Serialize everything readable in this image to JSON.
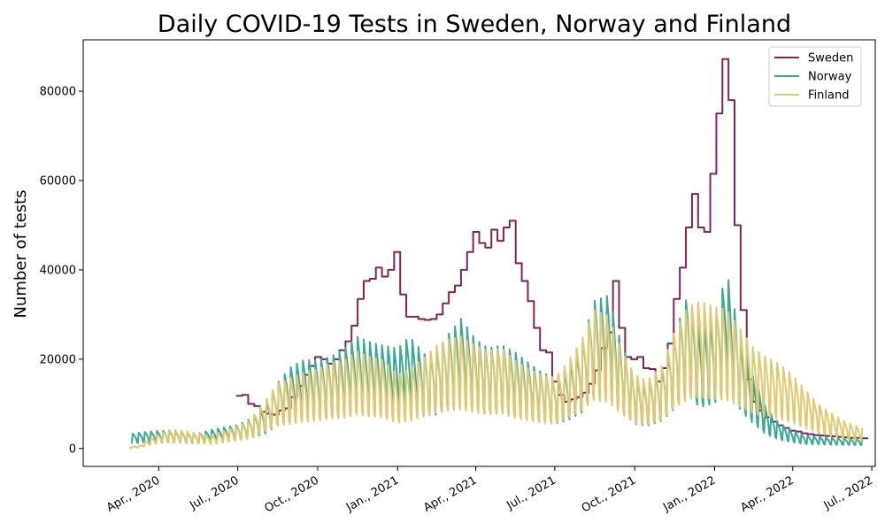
{
  "chart_data": {
    "type": "line",
    "title": "Daily COVID-19 Tests in Sweden, Norway and Finland",
    "xlabel": "",
    "ylabel": "Number of tests",
    "ylim": [
      -4000,
      91500
    ],
    "yticks": [
      0,
      20000,
      40000,
      60000,
      80000
    ],
    "xlim": [
      "2020-01-05",
      "2022-07-05"
    ],
    "xticks": [
      {
        "date": "2020-04-01",
        "label": "Apr., 2020"
      },
      {
        "date": "2020-07-01",
        "label": "Jul., 2020"
      },
      {
        "date": "2020-10-01",
        "label": "Oct., 2020"
      },
      {
        "date": "2021-01-01",
        "label": "Jan., 2021"
      },
      {
        "date": "2021-04-01",
        "label": "Apr., 2021"
      },
      {
        "date": "2021-07-01",
        "label": "Jul., 2021"
      },
      {
        "date": "2021-10-01",
        "label": "Oct., 2021"
      },
      {
        "date": "2022-01-01",
        "label": "Jan., 2022"
      },
      {
        "date": "2022-04-01",
        "label": "Apr., 2022"
      },
      {
        "date": "2022-07-01",
        "label": "Jul., 2022"
      }
    ],
    "grid": false,
    "legend_position": "top-right",
    "series": [
      {
        "name": "Sweden",
        "color": "#832357",
        "style": "weekly-steps",
        "points": [
          [
            "2020-06-29",
            11800
          ],
          [
            "2020-07-06",
            12000
          ],
          [
            "2020-07-13",
            10000
          ],
          [
            "2020-07-20",
            9500
          ],
          [
            "2020-07-27",
            8200
          ],
          [
            "2020-08-03",
            7800
          ],
          [
            "2020-08-10",
            7600
          ],
          [
            "2020-08-17",
            8500
          ],
          [
            "2020-08-24",
            9000
          ],
          [
            "2020-08-31",
            11500
          ],
          [
            "2020-09-07",
            14000
          ],
          [
            "2020-09-14",
            16500
          ],
          [
            "2020-09-21",
            18500
          ],
          [
            "2020-09-28",
            20500
          ],
          [
            "2020-10-05",
            20000
          ],
          [
            "2020-10-12",
            19000
          ],
          [
            "2020-10-19",
            20000
          ],
          [
            "2020-10-26",
            22000
          ],
          [
            "2020-11-02",
            24000
          ],
          [
            "2020-11-09",
            27500
          ],
          [
            "2020-11-16",
            33500
          ],
          [
            "2020-11-23",
            37500
          ],
          [
            "2020-11-30",
            38000
          ],
          [
            "2020-12-07",
            40500
          ],
          [
            "2020-12-14",
            38500
          ],
          [
            "2020-12-21",
            40000
          ],
          [
            "2020-12-28",
            44000
          ],
          [
            "2021-01-04",
            34500
          ],
          [
            "2021-01-11",
            29500
          ],
          [
            "2021-01-18",
            29500
          ],
          [
            "2021-01-25",
            29000
          ],
          [
            "2021-02-01",
            28800
          ],
          [
            "2021-02-08",
            29000
          ],
          [
            "2021-02-15",
            30000
          ],
          [
            "2021-02-22",
            32500
          ],
          [
            "2021-03-01",
            35000
          ],
          [
            "2021-03-08",
            36500
          ],
          [
            "2021-03-15",
            40000
          ],
          [
            "2021-03-22",
            44000
          ],
          [
            "2021-03-29",
            48500
          ],
          [
            "2021-04-05",
            46000
          ],
          [
            "2021-04-12",
            45000
          ],
          [
            "2021-04-19",
            49000
          ],
          [
            "2021-04-26",
            46500
          ],
          [
            "2021-05-03",
            49500
          ],
          [
            "2021-05-10",
            51000
          ],
          [
            "2021-05-17",
            41500
          ],
          [
            "2021-05-24",
            37500
          ],
          [
            "2021-05-31",
            33000
          ],
          [
            "2021-06-07",
            27000
          ],
          [
            "2021-06-14",
            22000
          ],
          [
            "2021-06-21",
            21500
          ],
          [
            "2021-06-28",
            15000
          ],
          [
            "2021-07-05",
            12000
          ],
          [
            "2021-07-12",
            10500
          ],
          [
            "2021-07-19",
            11000
          ],
          [
            "2021-07-26",
            11500
          ],
          [
            "2021-08-02",
            12500
          ],
          [
            "2021-08-09",
            14500
          ],
          [
            "2021-08-16",
            17500
          ],
          [
            "2021-08-23",
            22500
          ],
          [
            "2021-08-30",
            26000
          ],
          [
            "2021-09-06",
            37500
          ],
          [
            "2021-09-13",
            27000
          ],
          [
            "2021-09-20",
            20500
          ],
          [
            "2021-09-27",
            20000
          ],
          [
            "2021-10-04",
            20500
          ],
          [
            "2021-10-11",
            18000
          ],
          [
            "2021-10-18",
            17800
          ],
          [
            "2021-10-25",
            15000
          ],
          [
            "2021-11-01",
            18000
          ],
          [
            "2021-11-08",
            23500
          ],
          [
            "2021-11-15",
            33500
          ],
          [
            "2021-11-22",
            40500
          ],
          [
            "2021-11-29",
            49500
          ],
          [
            "2021-12-06",
            57000
          ],
          [
            "2021-12-13",
            49500
          ],
          [
            "2021-12-20",
            48500
          ],
          [
            "2021-12-27",
            61500
          ],
          [
            "2022-01-03",
            75000
          ],
          [
            "2022-01-10",
            87200
          ],
          [
            "2022-01-17",
            78000
          ],
          [
            "2022-01-24",
            50000
          ],
          [
            "2022-01-31",
            31000
          ],
          [
            "2022-02-07",
            15500
          ],
          [
            "2022-02-14",
            10500
          ],
          [
            "2022-02-21",
            8500
          ],
          [
            "2022-02-28",
            7000
          ],
          [
            "2022-03-07",
            6000
          ],
          [
            "2022-03-14",
            5200
          ],
          [
            "2022-03-21",
            4600
          ],
          [
            "2022-03-28",
            4000
          ],
          [
            "2022-04-04",
            3800
          ],
          [
            "2022-04-11",
            3400
          ],
          [
            "2022-04-18",
            3200
          ],
          [
            "2022-04-25",
            3000
          ],
          [
            "2022-05-02",
            2900
          ],
          [
            "2022-05-09",
            2800
          ],
          [
            "2022-05-16",
            2700
          ],
          [
            "2022-05-23",
            2600
          ],
          [
            "2022-05-30",
            2500
          ],
          [
            "2022-06-06",
            2400
          ],
          [
            "2022-06-13",
            2400
          ],
          [
            "2022-06-20",
            2300
          ]
        ]
      },
      {
        "name": "Norway",
        "color": "#3aa996",
        "style": "daily-weekly-oscillation",
        "points": [
          [
            "2020-03-01",
            2500
          ],
          [
            "2020-03-15",
            2800
          ],
          [
            "2020-04-01",
            3000
          ],
          [
            "2020-04-15",
            3000
          ],
          [
            "2020-05-01",
            2800
          ],
          [
            "2020-05-15",
            2500
          ],
          [
            "2020-06-01",
            3200
          ],
          [
            "2020-06-15",
            3600
          ],
          [
            "2020-07-01",
            4000
          ],
          [
            "2020-07-15",
            5000
          ],
          [
            "2020-08-01",
            7000
          ],
          [
            "2020-08-15",
            11000
          ],
          [
            "2020-09-01",
            14000
          ],
          [
            "2020-09-15",
            15000
          ],
          [
            "2020-10-01",
            15000
          ],
          [
            "2020-10-15",
            15500
          ],
          [
            "2020-11-01",
            17000
          ],
          [
            "2020-11-15",
            19000
          ],
          [
            "2020-12-01",
            18000
          ],
          [
            "2020-12-15",
            17500
          ],
          [
            "2021-01-01",
            17000
          ],
          [
            "2021-01-15",
            19000
          ],
          [
            "2021-02-01",
            16000
          ],
          [
            "2021-02-15",
            16500
          ],
          [
            "2021-03-01",
            19500
          ],
          [
            "2021-03-15",
            22000
          ],
          [
            "2021-04-01",
            18500
          ],
          [
            "2021-04-15",
            17000
          ],
          [
            "2021-05-01",
            17500
          ],
          [
            "2021-05-15",
            16500
          ],
          [
            "2021-06-01",
            14500
          ],
          [
            "2021-06-15",
            13000
          ],
          [
            "2021-07-01",
            12000
          ],
          [
            "2021-07-15",
            13500
          ],
          [
            "2021-08-01",
            17500
          ],
          [
            "2021-08-15",
            25000
          ],
          [
            "2021-09-01",
            26000
          ],
          [
            "2021-09-15",
            18000
          ],
          [
            "2021-10-01",
            12000
          ],
          [
            "2021-10-15",
            11000
          ],
          [
            "2021-11-01",
            13500
          ],
          [
            "2021-11-15",
            19000
          ],
          [
            "2021-12-01",
            26000
          ],
          [
            "2021-12-15",
            20000
          ],
          [
            "2022-01-01",
            22000
          ],
          [
            "2022-01-15",
            30000
          ],
          [
            "2022-02-01",
            18000
          ],
          [
            "2022-02-15",
            12000
          ],
          [
            "2022-03-01",
            7000
          ],
          [
            "2022-03-15",
            4500
          ],
          [
            "2022-04-01",
            3000
          ],
          [
            "2022-04-15",
            2200
          ],
          [
            "2022-05-01",
            2000
          ],
          [
            "2022-05-15",
            1800
          ],
          [
            "2022-06-01",
            1700
          ],
          [
            "2022-06-20",
            1600
          ]
        ]
      },
      {
        "name": "Finland",
        "color": "#e0c96e",
        "style": "daily-weekly-oscillation",
        "points": [
          [
            "2020-02-27",
            200
          ],
          [
            "2020-03-10",
            500
          ],
          [
            "2020-03-20",
            1500
          ],
          [
            "2020-04-01",
            2500
          ],
          [
            "2020-04-15",
            3200
          ],
          [
            "2020-05-01",
            3000
          ],
          [
            "2020-05-15",
            2600
          ],
          [
            "2020-06-01",
            2200
          ],
          [
            "2020-06-15",
            3000
          ],
          [
            "2020-07-01",
            3800
          ],
          [
            "2020-07-15",
            4800
          ],
          [
            "2020-08-01",
            8000
          ],
          [
            "2020-08-15",
            11000
          ],
          [
            "2020-09-01",
            12000
          ],
          [
            "2020-09-15",
            13000
          ],
          [
            "2020-10-01",
            13500
          ],
          [
            "2020-10-15",
            14500
          ],
          [
            "2020-11-01",
            15000
          ],
          [
            "2020-11-15",
            16500
          ],
          [
            "2020-12-01",
            15500
          ],
          [
            "2020-12-15",
            15000
          ],
          [
            "2021-01-01",
            12500
          ],
          [
            "2021-01-15",
            13500
          ],
          [
            "2021-02-01",
            15500
          ],
          [
            "2021-02-15",
            17500
          ],
          [
            "2021-03-01",
            18500
          ],
          [
            "2021-03-15",
            19000
          ],
          [
            "2021-04-01",
            17500
          ],
          [
            "2021-04-15",
            16500
          ],
          [
            "2021-05-01",
            17000
          ],
          [
            "2021-05-15",
            15000
          ],
          [
            "2021-06-01",
            13500
          ],
          [
            "2021-06-15",
            12500
          ],
          [
            "2021-07-01",
            12000
          ],
          [
            "2021-07-15",
            14500
          ],
          [
            "2021-08-01",
            18500
          ],
          [
            "2021-08-15",
            23500
          ],
          [
            "2021-09-01",
            22500
          ],
          [
            "2021-09-15",
            17000
          ],
          [
            "2021-10-01",
            12500
          ],
          [
            "2021-10-15",
            11500
          ],
          [
            "2021-11-01",
            14000
          ],
          [
            "2021-11-15",
            19500
          ],
          [
            "2021-12-01",
            24000
          ],
          [
            "2021-12-15",
            25000
          ],
          [
            "2022-01-01",
            24000
          ],
          [
            "2022-01-15",
            23500
          ],
          [
            "2022-02-01",
            20000
          ],
          [
            "2022-02-15",
            17000
          ],
          [
            "2022-03-01",
            15500
          ],
          [
            "2022-03-15",
            14500
          ],
          [
            "2022-04-01",
            12500
          ],
          [
            "2022-04-15",
            10000
          ],
          [
            "2022-05-01",
            7500
          ],
          [
            "2022-05-15",
            6000
          ],
          [
            "2022-06-01",
            4500
          ],
          [
            "2022-06-20",
            3500
          ]
        ]
      }
    ]
  }
}
